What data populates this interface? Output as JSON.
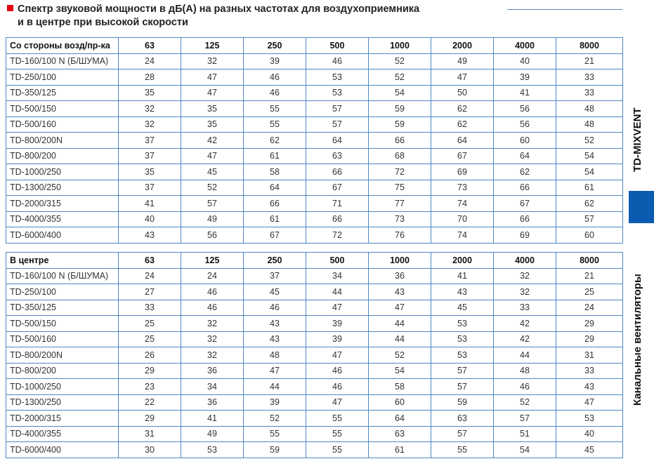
{
  "title": {
    "line1": "Спектр звуковой мощности в дБ(А) на разных частотах для воздухоприемника",
    "line2": "и в центре при высокой скорости",
    "marker_color": "#e30613"
  },
  "sidebar": {
    "brand": "TD-MIXVENT",
    "section": "Канальные вентиляторы",
    "accent_color": "#0b5cb0"
  },
  "tables": [
    {
      "header": [
        "Со стороны возд/пр-ка",
        "63",
        "125",
        "250",
        "500",
        "1000",
        "2000",
        "4000",
        "8000"
      ],
      "rows": [
        [
          "TD-160/100 N (Б/ШУМА)",
          "24",
          "32",
          "39",
          "46",
          "52",
          "49",
          "40",
          "21"
        ],
        [
          "TD-250/100",
          "28",
          "47",
          "46",
          "53",
          "52",
          "47",
          "39",
          "33"
        ],
        [
          "TD-350/125",
          "35",
          "47",
          "46",
          "53",
          "54",
          "50",
          "41",
          "33"
        ],
        [
          "TD-500/150",
          "32",
          "35",
          "55",
          "57",
          "59",
          "62",
          "56",
          "48"
        ],
        [
          "TD-500/160",
          "32",
          "35",
          "55",
          "57",
          "59",
          "62",
          "56",
          "48"
        ],
        [
          "TD-800/200N",
          "37",
          "42",
          "62",
          "64",
          "66",
          "64",
          "60",
          "52"
        ],
        [
          "TD-800/200",
          "37",
          "47",
          "61",
          "63",
          "68",
          "67",
          "64",
          "54"
        ],
        [
          "TD-1000/250",
          "35",
          "45",
          "58",
          "66",
          "72",
          "69",
          "62",
          "54"
        ],
        [
          "TD-1300/250",
          "37",
          "52",
          "64",
          "67",
          "75",
          "73",
          "66",
          "61"
        ],
        [
          "TD-2000/315",
          "41",
          "57",
          "66",
          "71",
          "77",
          "74",
          "67",
          "62"
        ],
        [
          "TD-4000/355",
          "40",
          "49",
          "61",
          "66",
          "73",
          "70",
          "66",
          "57"
        ],
        [
          "TD-6000/400",
          "43",
          "56",
          "67",
          "72",
          "76",
          "74",
          "69",
          "60"
        ]
      ]
    },
    {
      "header": [
        "В центре",
        "63",
        "125",
        "250",
        "500",
        "1000",
        "2000",
        "4000",
        "8000"
      ],
      "rows": [
        [
          "TD-160/100 N (Б/ШУМА)",
          "24",
          "24",
          "37",
          "34",
          "36",
          "41",
          "32",
          "21"
        ],
        [
          "TD-250/100",
          "27",
          "46",
          "45",
          "44",
          "43",
          "43",
          "32",
          "25"
        ],
        [
          "TD-350/125",
          "33",
          "46",
          "46",
          "47",
          "47",
          "45",
          "33",
          "24"
        ],
        [
          "TD-500/150",
          "25",
          "32",
          "43",
          "39",
          "44",
          "53",
          "42",
          "29"
        ],
        [
          "TD-500/160",
          "25",
          "32",
          "43",
          "39",
          "44",
          "53",
          "42",
          "29"
        ],
        [
          "TD-800/200N",
          "26",
          "32",
          "48",
          "47",
          "52",
          "53",
          "44",
          "31"
        ],
        [
          "TD-800/200",
          "29",
          "36",
          "47",
          "46",
          "54",
          "57",
          "48",
          "33"
        ],
        [
          "TD-1000/250",
          "23",
          "34",
          "44",
          "46",
          "58",
          "57",
          "46",
          "43"
        ],
        [
          "TD-1300/250",
          "22",
          "36",
          "39",
          "47",
          "60",
          "59",
          "52",
          "47"
        ],
        [
          "TD-2000/315",
          "29",
          "41",
          "52",
          "55",
          "64",
          "63",
          "57",
          "53"
        ],
        [
          "TD-4000/355",
          "31",
          "49",
          "55",
          "55",
          "63",
          "57",
          "51",
          "40"
        ],
        [
          "TD-6000/400",
          "30",
          "53",
          "59",
          "55",
          "61",
          "55",
          "54",
          "45"
        ]
      ]
    }
  ]
}
